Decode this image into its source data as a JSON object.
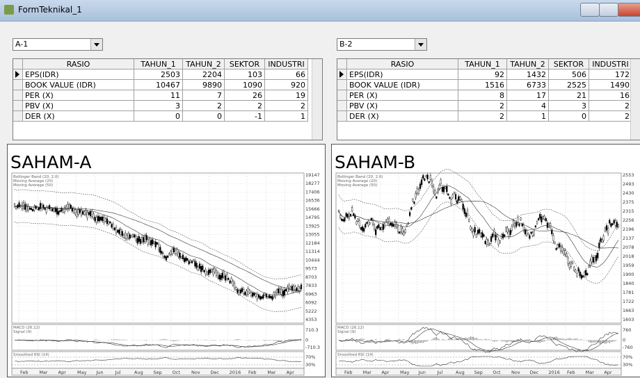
{
  "window": {
    "title": "FormTeknikal_1"
  },
  "panels": [
    {
      "dropdown": "A-1",
      "table": {
        "columns": [
          "RASIO",
          "TAHUN_1",
          "TAHUN_2",
          "SEKTOR",
          "INDUSTRI"
        ],
        "rows": [
          [
            "EPS(IDR)",
            2503,
            2204,
            103,
            66
          ],
          [
            "BOOK VALUE (IDR)",
            10467,
            9890,
            1090,
            920
          ],
          [
            "PER (X)",
            11,
            7,
            26,
            19
          ],
          [
            "PBV (X)",
            3,
            2,
            2,
            2
          ],
          [
            "DER (X)",
            0,
            0,
            -1,
            1
          ]
        ]
      },
      "chart": {
        "title": "SAHAM-A",
        "legend": [
          "Bollinger Band (20, 2.0)",
          "Moving Average (20)",
          "Moving Average (50)"
        ],
        "price_labels": [
          "19147",
          "18277",
          "17406",
          "16536",
          "15666",
          "14795",
          "13925",
          "13055",
          "12184",
          "11314",
          "10444",
          "9573",
          "8703",
          "7833",
          "6963",
          "6092",
          "5222",
          "4353"
        ],
        "macd": {
          "title": "MACD (26,12)",
          "signal": "Signal (9)",
          "labels": [
            "710.3",
            "0",
            "-710.3"
          ]
        },
        "rsi": {
          "title": "Smoothed RSI (14)",
          "labels": [
            "70%",
            "30%"
          ]
        },
        "months": [
          "Feb",
          "Mar",
          "Apr",
          "May",
          "Jun",
          "Jul",
          "Aug",
          "Sep",
          "Oct",
          "Nov",
          "Dec",
          "2016",
          "Feb",
          "Mar",
          "Apr"
        ]
      }
    },
    {
      "dropdown": "B-2",
      "table": {
        "columns": [
          "RASIO",
          "TAHUN_1",
          "TAHUN_2",
          "SEKTOR",
          "INDUSTRI"
        ],
        "rows": [
          [
            "EPS(IDR)",
            92,
            1432,
            506,
            172
          ],
          [
            "BOOK VALUE (IDR)",
            1516,
            6733,
            2525,
            1490
          ],
          [
            "PER (X)",
            8,
            17,
            21,
            16
          ],
          [
            "PBV (X)",
            2,
            4,
            3,
            2
          ],
          [
            "DER (X)",
            2,
            1,
            0,
            2
          ]
        ]
      },
      "chart": {
        "title": "SAHAM-B",
        "legend": [
          "Bollinger Band (20, 2.0)",
          "Moving Average (20)",
          "Moving Average (50)"
        ],
        "price_labels": [
          "2553",
          "2493",
          "2430",
          "2375",
          "2315",
          "2256",
          "2196",
          "2137",
          "2078",
          "2018",
          "1959",
          "1900",
          "1840",
          "1781",
          "1722",
          "1663",
          "1603"
        ],
        "macd": {
          "title": "MACD (26,12)",
          "signal": "Signal (9)",
          "labels": [
            "760",
            "0",
            "-760"
          ]
        },
        "rsi": {
          "title": "Smoothed RSI (14)",
          "labels": [
            "70%",
            "30%"
          ]
        },
        "months": [
          "Feb",
          "Mar",
          "Apr",
          "May",
          "Jun",
          "Jul",
          "Aug",
          "Sep",
          "Oct",
          "Nov",
          "Dec",
          "2016",
          "Feb",
          "Mar",
          "Apr"
        ]
      }
    }
  ]
}
